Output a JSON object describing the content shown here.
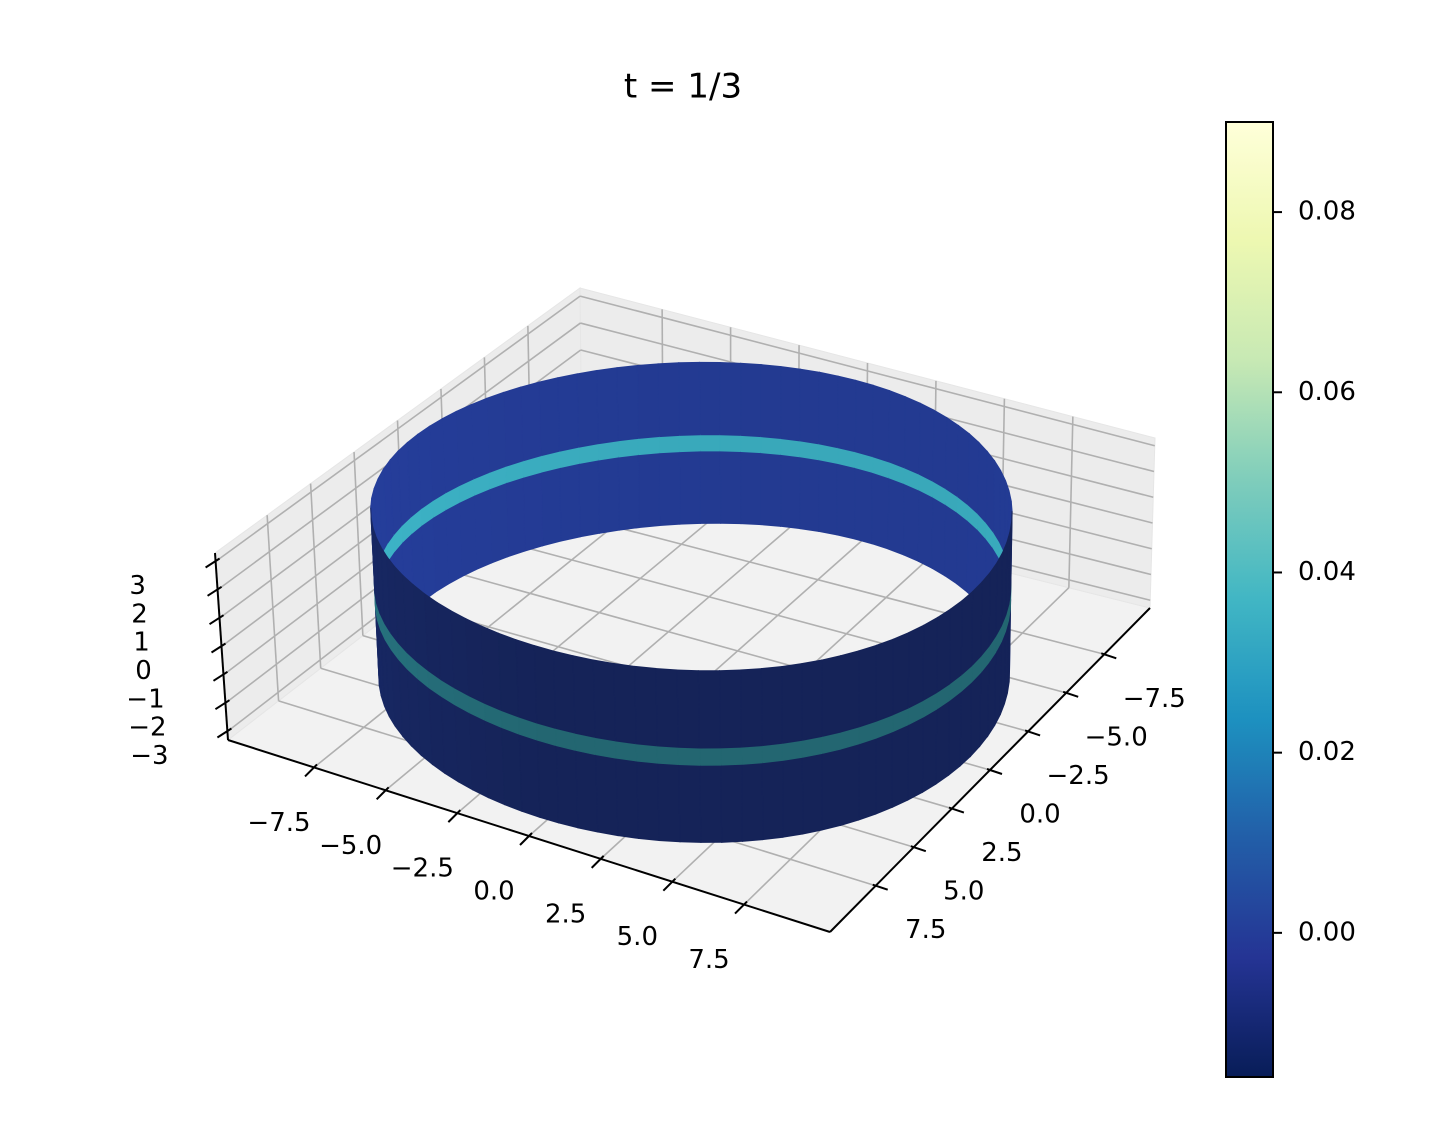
{
  "chart_data": {
    "type": "surface3d",
    "title": "t = 1/3",
    "colormap": "YlGnBu",
    "xlim": [
      -10.5,
      10.5
    ],
    "ylim": [
      -10.5,
      10.5
    ],
    "zlim": [
      -3.3,
      3.3
    ],
    "xticks": [
      {
        "value": -7.5,
        "label": "−7.5"
      },
      {
        "value": -5,
        "label": "−5.0"
      },
      {
        "value": -2.5,
        "label": "−2.5"
      },
      {
        "value": 0,
        "label": "0.0"
      },
      2.5,
      {
        "value": 5,
        "label": "5.0"
      },
      7.5
    ],
    "yticks": [
      {
        "value": -7.5,
        "label": "−7.5"
      },
      {
        "value": -5,
        "label": "−5.0"
      },
      {
        "value": -2.5,
        "label": "−2.5"
      },
      {
        "value": 0,
        "label": "0.0"
      },
      2.5,
      {
        "value": 5,
        "label": "5.0"
      },
      7.5
    ],
    "zticks": [
      {
        "value": -3,
        "label": "−3"
      },
      {
        "value": -2,
        "label": "−2"
      },
      {
        "value": -1,
        "label": "−1"
      },
      0,
      1,
      2,
      3
    ],
    "clim": [
      -0.016,
      0.09
    ],
    "cticks": [
      {
        "value": 0,
        "label": "0.00"
      },
      0.02,
      0.04,
      0.06,
      0.08
    ],
    "surface": {
      "radius": 9.8,
      "z": [
        -3,
        -0.3,
        0.3,
        3
      ],
      "values": [
        0,
        0.035,
        0
      ]
    },
    "grid": true
  }
}
